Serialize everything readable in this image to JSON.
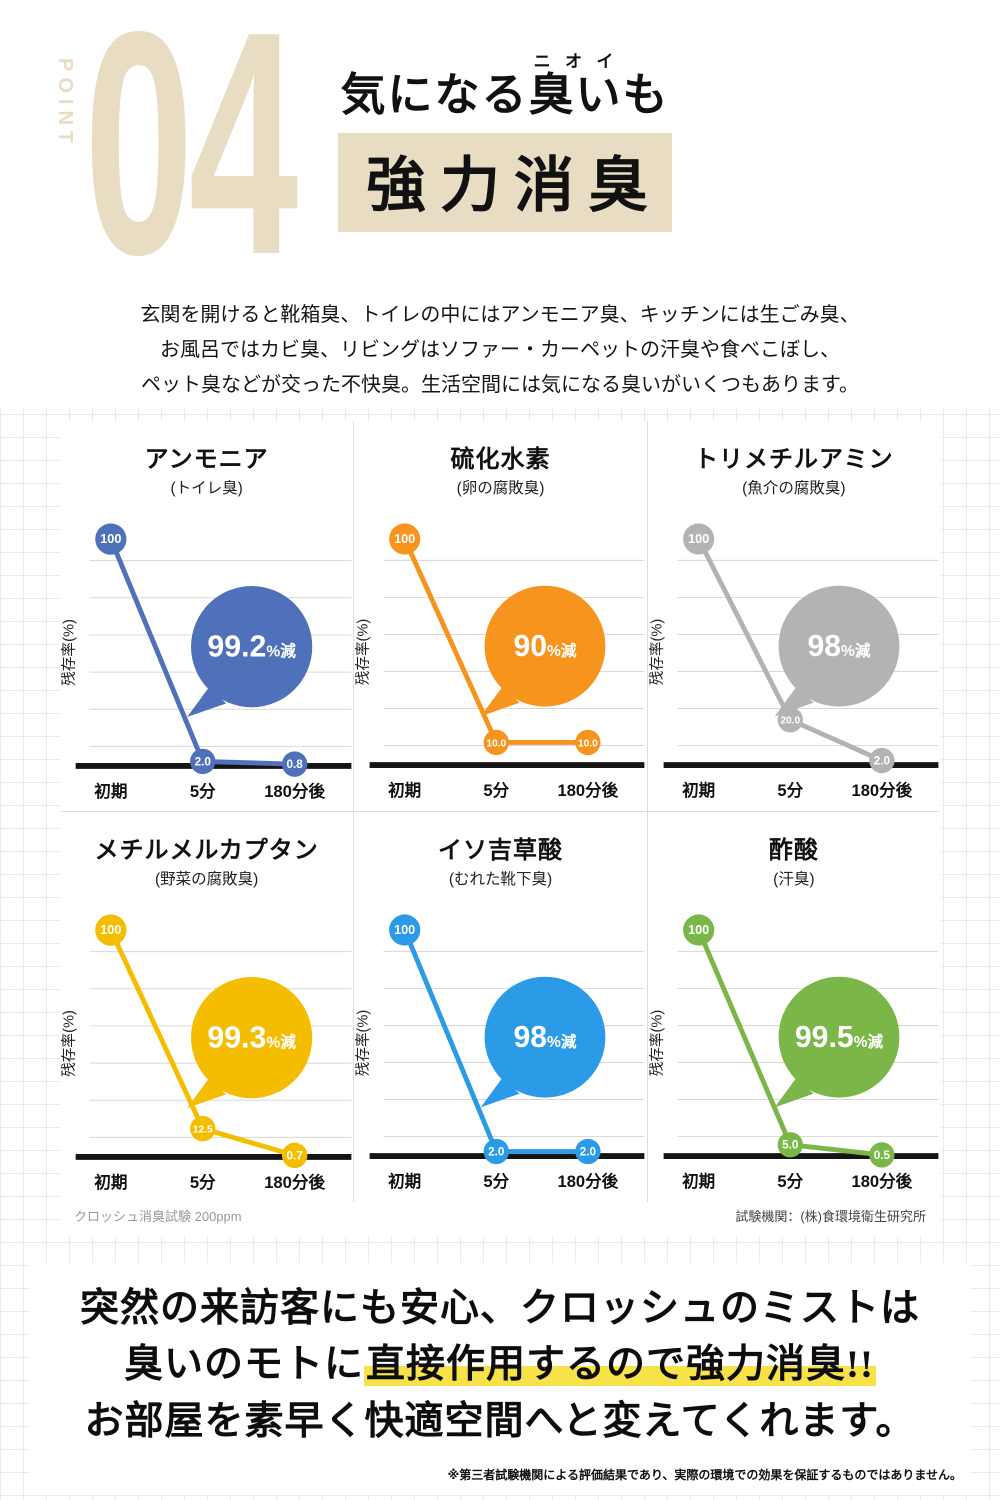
{
  "colors": {
    "accent_beige": "#e8ddc3",
    "highlight_yellow": "#f7e24a"
  },
  "header": {
    "point_label": "POINT",
    "point_number": "04",
    "title1_pre": "気になる",
    "title1_ruby_base": "臭い",
    "title1_ruby_text": "ニオイ",
    "title1_post": "も",
    "title2": "強力消臭",
    "intro_lines": [
      "玄関を開けると靴箱臭、トイレの中にはアンモニア臭、キッチンには生ごみ臭、",
      "お風呂ではカビ臭、リビングはソファー・カーペットの汗臭や食べこぼし、",
      "ペット臭などが交った不快臭。生活空間には気になる臭いがいくつもあります。"
    ]
  },
  "chart_common": {
    "ylabel": "残存率(%)",
    "x_labels": [
      "初期",
      "5分",
      "180分後"
    ],
    "ylim": [
      0,
      100
    ],
    "grid": true
  },
  "chart_data": [
    {
      "type": "line",
      "title": "アンモニア",
      "subtitle": "(トイレ臭)",
      "color": "#4f71b9",
      "x": [
        "初期",
        "5分",
        "180分後"
      ],
      "values": [
        100,
        2.0,
        0.8
      ],
      "labels": [
        "100",
        "2.0",
        "0.8"
      ],
      "badge": "99.2",
      "badge_suffix": "%減"
    },
    {
      "type": "line",
      "title": "硫化水素",
      "subtitle": "(卵の腐敗臭)",
      "color": "#f7941d",
      "x": [
        "初期",
        "5分",
        "180分後"
      ],
      "values": [
        100,
        10.0,
        10.0
      ],
      "labels": [
        "100",
        "10.0",
        "10.0"
      ],
      "badge": "90",
      "badge_suffix": "%減"
    },
    {
      "type": "line",
      "title": "トリメチルアミン",
      "subtitle": "(魚介の腐敗臭)",
      "color": "#b3b3b3",
      "x": [
        "初期",
        "5分",
        "180分後"
      ],
      "values": [
        100,
        20.0,
        2.0
      ],
      "labels": [
        "100",
        "20.0",
        "2.0"
      ],
      "badge": "98",
      "badge_suffix": "%減"
    },
    {
      "type": "line",
      "title": "メチルメルカプタン",
      "subtitle": "(野菜の腐敗臭)",
      "color": "#f5bd00",
      "x": [
        "初期",
        "5分",
        "180分後"
      ],
      "values": [
        100,
        12.5,
        0.7
      ],
      "labels": [
        "100",
        "12.5",
        "0.7"
      ],
      "badge": "99.3",
      "badge_suffix": "%減"
    },
    {
      "type": "line",
      "title": "イソ吉草酸",
      "subtitle": "(むれた靴下臭)",
      "color": "#2b9be8",
      "x": [
        "初期",
        "5分",
        "180分後"
      ],
      "values": [
        100,
        2.0,
        2.0
      ],
      "labels": [
        "100",
        "2.0",
        "2.0"
      ],
      "badge": "98",
      "badge_suffix": "%減"
    },
    {
      "type": "line",
      "title": "酢酸",
      "subtitle": "(汗臭)",
      "color": "#7ab648",
      "x": [
        "初期",
        "5分",
        "180分後"
      ],
      "values": [
        100,
        5.0,
        0.5
      ],
      "labels": [
        "100",
        "5.0",
        "0.5"
      ],
      "badge": "99.5",
      "badge_suffix": "%減"
    }
  ],
  "captions": {
    "left": "クロッシュ消臭試験 200ppm",
    "right": "試験機関：(株)食環境衛生研究所"
  },
  "outro": {
    "line1": "突然の来訪客にも安心、クロッシュのミストは",
    "line2_prefix": "臭いのモトに",
    "line2_highlight": "直接作用するので強力消臭!!",
    "line3": "お部屋を素早く快適空間へと変えてくれます。",
    "disclaimer": "※第三者試験機関による評価結果であり、実際の環境での効果を保証するものではありません。"
  }
}
